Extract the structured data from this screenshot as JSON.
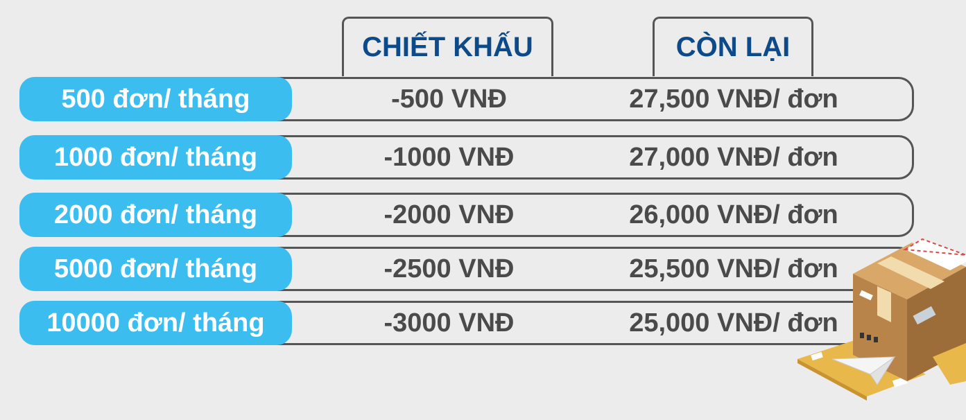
{
  "headers": {
    "discount": "CHIẾT KHẤU",
    "remaining": "CÒN LẠI"
  },
  "rows": [
    {
      "tier": "500 đơn/ tháng",
      "discount": "-500 VNĐ",
      "remaining": "27,500 VNĐ/ đơn"
    },
    {
      "tier": "1000 đơn/ tháng",
      "discount": "-1000 VNĐ",
      "remaining": "27,000 VNĐ/ đơn"
    },
    {
      "tier": "2000 đơn/ tháng",
      "discount": "-2000 VNĐ",
      "remaining": "26,000 VNĐ/ đơn"
    },
    {
      "tier": "5000 đơn/ tháng",
      "discount": "-2500 VNĐ",
      "remaining": "25,500 VNĐ/ đơn"
    },
    {
      "tier": "10000 đơn/ tháng",
      "discount": "-3000 VNĐ",
      "remaining": "25,000 VNĐ/ đơn"
    }
  ],
  "colors": {
    "tier_pill": "#3bbdf0",
    "header_text": "#0d4a8a",
    "cell_text": "#4a4a4a",
    "border": "#555555",
    "background": "#ececec"
  },
  "icons": [
    "package-box-icon",
    "envelope-icon",
    "paper-plane-icon"
  ]
}
